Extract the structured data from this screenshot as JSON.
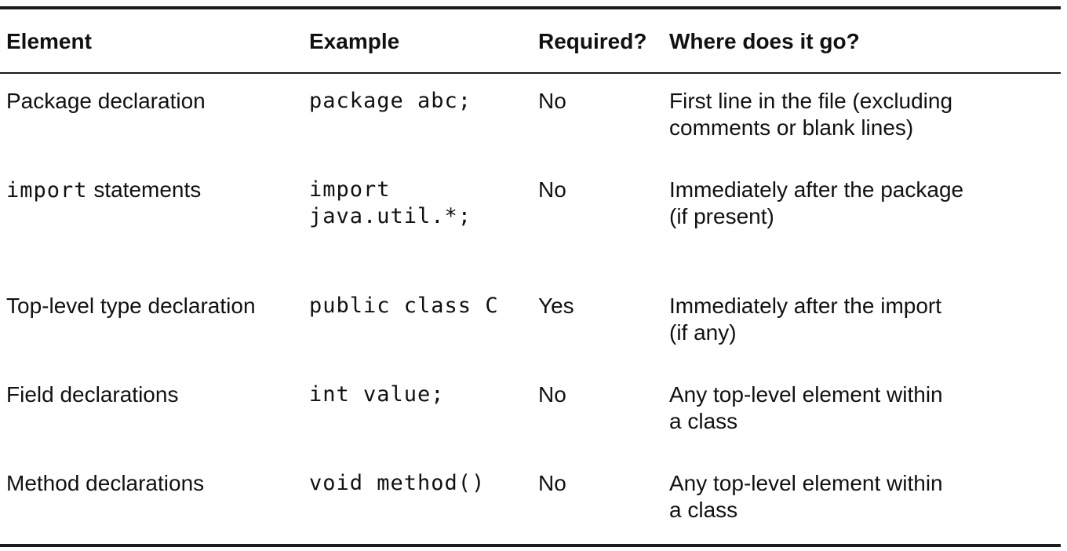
{
  "table": {
    "headers": [
      "Element",
      "Example",
      "Required?",
      "Where does it go?"
    ],
    "rows": [
      {
        "element_prefix": "",
        "element_code": "",
        "element": "Package declaration",
        "example_lines": [
          "package abc;"
        ],
        "required": "No",
        "where_lines": [
          "First line in the file (excluding",
          "comments or blank lines)"
        ]
      },
      {
        "element_prefix": "import",
        "element_code": "import",
        "element": "statements",
        "example_lines": [
          "import",
          "java.util.*;"
        ],
        "required": "No",
        "where_lines": [
          "Immediately after the package",
          "(if present)"
        ]
      },
      {
        "element_prefix": "",
        "element_code": "",
        "element": "Top-level type declaration",
        "example_lines": [
          "public class C"
        ],
        "required": "Yes",
        "where_lines": [
          "Immediately after the import",
          "(if any)"
        ]
      },
      {
        "element_prefix": "",
        "element_code": "",
        "element": "Field declarations",
        "example_lines": [
          "int value;"
        ],
        "required": "No",
        "where_lines": [
          "Any top-level element within",
          "a class"
        ]
      },
      {
        "element_prefix": "",
        "element_code": "",
        "element": "Method declarations",
        "example_lines": [
          "void method()"
        ],
        "required": "No",
        "where_lines": [
          "Any top-level element within",
          "a class"
        ]
      }
    ]
  }
}
